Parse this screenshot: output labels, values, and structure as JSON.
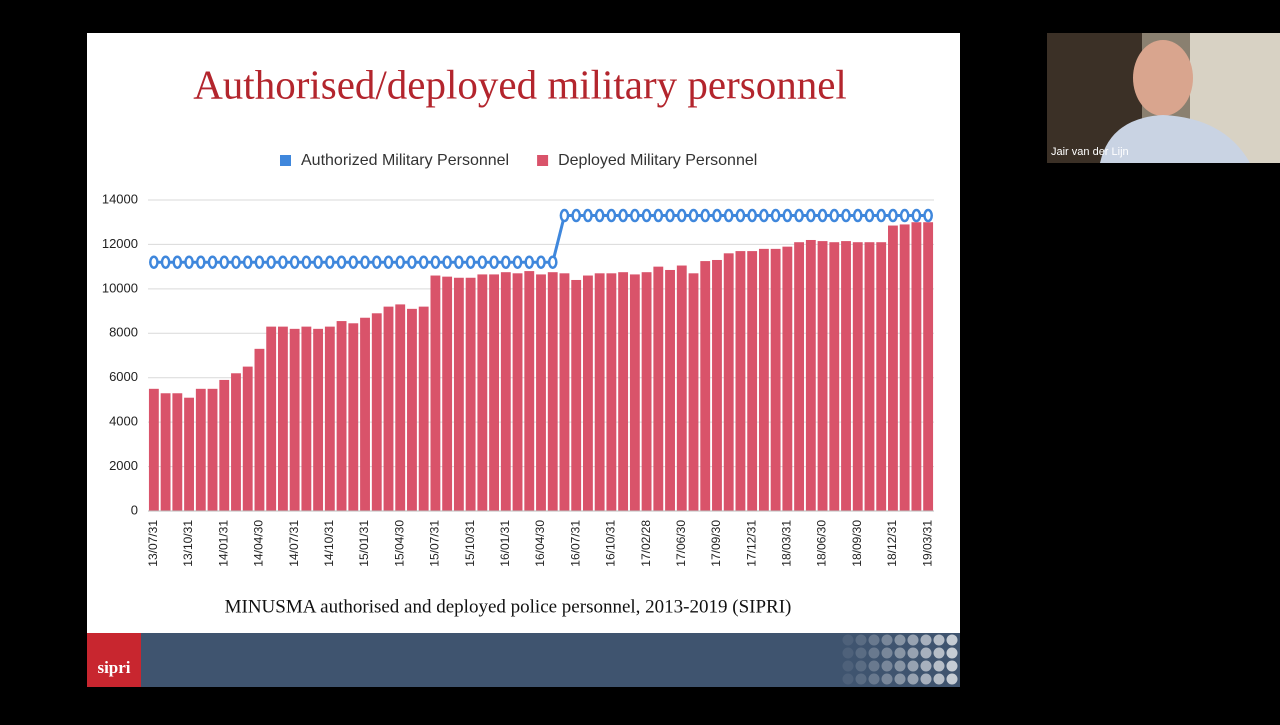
{
  "slide": {
    "title": "Authorised/deployed military personnel",
    "caption": "MINUSMA authorised and deployed police personnel, 2013-2019 (SIPRI)",
    "logo": "sipri"
  },
  "participant": {
    "name": "Jair van der Lijn"
  },
  "chart_data": {
    "type": "bar",
    "categories": [
      "13/07/31",
      null,
      null,
      "13/10/31",
      null,
      null,
      "14/01/31",
      null,
      null,
      "14/04/30",
      null,
      null,
      "14/07/31",
      null,
      null,
      "14/10/31",
      null,
      null,
      "15/01/31",
      null,
      null,
      "15/04/30",
      null,
      null,
      "15/07/31",
      null,
      null,
      "15/10/31",
      null,
      null,
      "16/01/31",
      null,
      null,
      "16/04/30",
      null,
      null,
      "16/07/31",
      null,
      null,
      "16/10/31",
      null,
      null,
      "17/02/28",
      null,
      null,
      "17/06/30",
      null,
      null,
      "17/09/30",
      null,
      null,
      "17/12/31",
      null,
      null,
      "18/03/31",
      null,
      null,
      "18/06/30",
      null,
      null,
      "18/09/30",
      null,
      null,
      "18/12/31",
      null,
      null,
      "19/03/31"
    ],
    "series": [
      {
        "name": "Authorized Military Personnel",
        "color": "#3f87dc",
        "kind": "line",
        "values": [
          11200,
          11200,
          11200,
          11200,
          11200,
          11200,
          11200,
          11200,
          11200,
          11200,
          11200,
          11200,
          11200,
          11200,
          11200,
          11200,
          11200,
          11200,
          11200,
          11200,
          11200,
          11200,
          11200,
          11200,
          11200,
          11200,
          11200,
          11200,
          11200,
          11200,
          11200,
          11200,
          11200,
          11200,
          11200,
          13300,
          13300,
          13300,
          13300,
          13300,
          13300,
          13300,
          13300,
          13300,
          13300,
          13300,
          13300,
          13300,
          13300,
          13300,
          13300,
          13300,
          13300,
          13300,
          13300,
          13300,
          13300,
          13300,
          13300,
          13300,
          13300,
          13300,
          13300,
          13300,
          13300,
          13300,
          13300
        ]
      },
      {
        "name": "Deployed Military Personnel",
        "color": "#d9536a",
        "kind": "bar",
        "values": [
          5500,
          5300,
          5300,
          5100,
          5500,
          5500,
          5900,
          6200,
          6500,
          7300,
          8300,
          8300,
          8200,
          8300,
          8200,
          8300,
          8550,
          8450,
          8700,
          8900,
          9200,
          9300,
          9100,
          9200,
          10600,
          10550,
          10500,
          10500,
          10650,
          10650,
          10750,
          10700,
          10800,
          10650,
          10750,
          10700,
          10400,
          10600,
          10700,
          10700,
          10750,
          10650,
          10750,
          11000,
          10850,
          11050,
          10700,
          11250,
          11300,
          11600,
          11700,
          11700,
          11800,
          11800,
          11900,
          12100,
          12200,
          12150,
          12100,
          12150,
          12100,
          12100,
          12100,
          12850,
          12900,
          13000,
          13000
        ]
      }
    ],
    "ylim": [
      0,
      14000
    ],
    "yticks": [
      0,
      2000,
      4000,
      6000,
      8000,
      10000,
      12000,
      14000
    ],
    "grid": true,
    "legend": "top"
  }
}
